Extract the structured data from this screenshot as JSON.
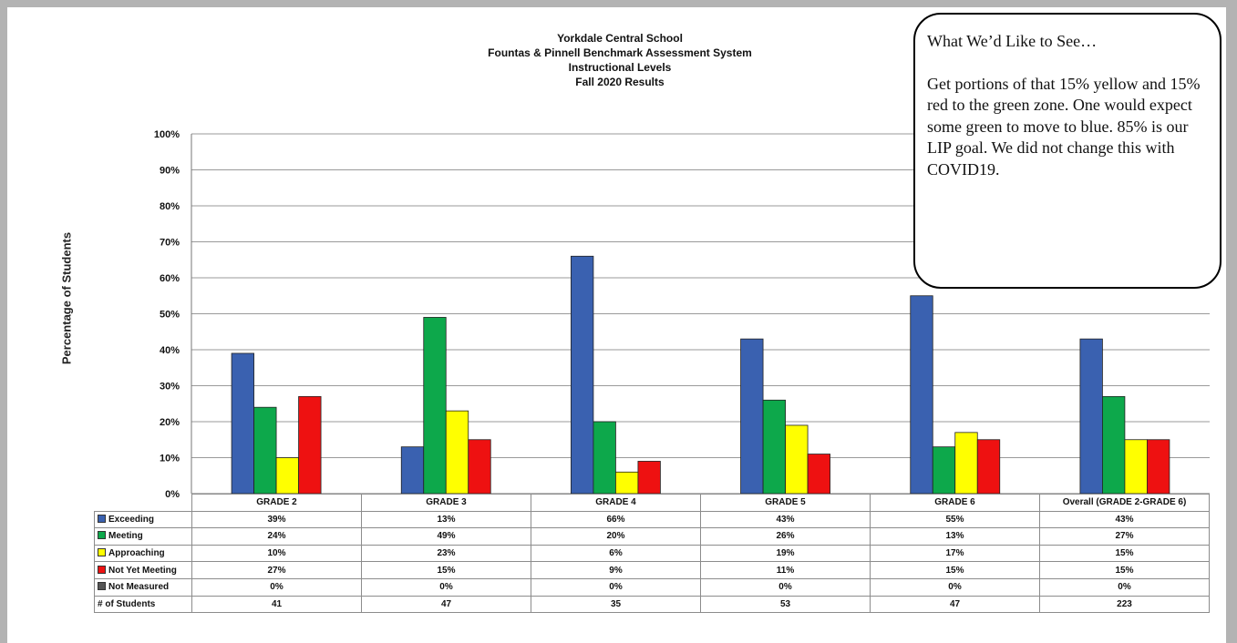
{
  "colors": {
    "exceeding": "#3a61b0",
    "meeting": "#0da84b",
    "approaching": "#ffff00",
    "not_yet_meeting": "#ee1111",
    "not_measured": "#555555"
  },
  "callout": {
    "heading": "What We’d Like to See…",
    "body": "Get portions of that 15% yellow and 15% red to the green zone. One would expect some green to move to blue. 85% is our LIP goal. We did not change this with COVID19."
  },
  "chart_data": {
    "type": "bar",
    "title": [
      "Yorkdale Central School",
      "Fountas & Pinnell Benchmark Assessment System",
      "Instructional Levels",
      "Fall 2020 Results"
    ],
    "ylabel": "Percentage of Students",
    "ylim": [
      0,
      100
    ],
    "yticks": [
      "0%",
      "10%",
      "20%",
      "30%",
      "40%",
      "50%",
      "60%",
      "70%",
      "80%",
      "90%",
      "100%"
    ],
    "categories": [
      "GRADE 2",
      "GRADE 3",
      "GRADE 4",
      "GRADE 5",
      "GRADE 6",
      "Overall (GRADE 2-GRADE 6)"
    ],
    "series": [
      {
        "name": "Exceeding",
        "color": "#3a61b0",
        "values": [
          39,
          13,
          66,
          43,
          55,
          43
        ],
        "labels": [
          "39%",
          "13%",
          "66%",
          "43%",
          "55%",
          "43%"
        ]
      },
      {
        "name": "Meeting",
        "color": "#0da84b",
        "values": [
          24,
          49,
          20,
          26,
          13,
          27
        ],
        "labels": [
          "24%",
          "49%",
          "20%",
          "26%",
          "13%",
          "27%"
        ]
      },
      {
        "name": "Approaching",
        "color": "#ffff00",
        "values": [
          10,
          23,
          6,
          19,
          17,
          15
        ],
        "labels": [
          "10%",
          "23%",
          "6%",
          "19%",
          "17%",
          "15%"
        ]
      },
      {
        "name": "Not Yet Meeting",
        "color": "#ee1111",
        "values": [
          27,
          15,
          9,
          11,
          15,
          15
        ],
        "labels": [
          "27%",
          "15%",
          "9%",
          "11%",
          "15%",
          "15%"
        ]
      },
      {
        "name": "Not Measured",
        "color": "#555555",
        "values": [
          0,
          0,
          0,
          0,
          0,
          0
        ],
        "labels": [
          "0%",
          "0%",
          "0%",
          "0%",
          "0%",
          "0%"
        ]
      }
    ],
    "students_row": {
      "name": "# of Students",
      "values": [
        "41",
        "47",
        "35",
        "53",
        "47",
        "223"
      ]
    },
    "grid": true,
    "legend": "data-table-below"
  }
}
